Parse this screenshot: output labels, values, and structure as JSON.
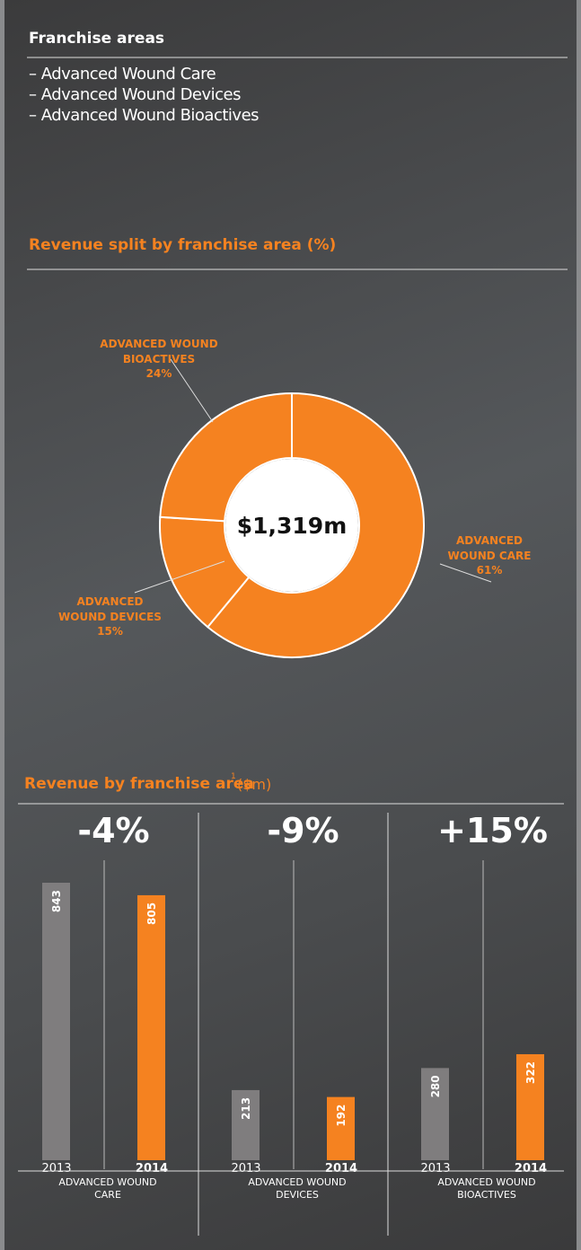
{
  "franchise": {
    "title": "Franchise areas",
    "items": [
      "– Advanced Wound Care",
      "– Advanced Wound Devices",
      "– Advanced Wound Bioactives"
    ]
  },
  "chart_data": [
    {
      "type": "pie",
      "title": "Revenue split by franchise area (%)",
      "center_label": "$1,319m",
      "categories": [
        "ADVANCED WOUND CARE",
        "ADVANCED WOUND DEVICES",
        "ADVANCED WOUND BIOACTIVES"
      ],
      "values": [
        61,
        15,
        24
      ],
      "value_labels": [
        "61%",
        "15%",
        "24%"
      ],
      "color": "#f58220"
    },
    {
      "type": "bar",
      "title": "Revenue by franchise area",
      "title_note": "1",
      "title_unit": "($m)",
      "categories": [
        "ADVANCED WOUND CARE",
        "ADVANCED WOUND DEVICES",
        "ADVANCED WOUND BIOACTIVES"
      ],
      "changes": [
        "-4%",
        "-9%",
        "+15%"
      ],
      "series": [
        {
          "name": "2013",
          "color": "#7f7d7e",
          "values": [
            843,
            213,
            280
          ]
        },
        {
          "name": "2014",
          "color": "#f58220",
          "values": [
            805,
            192,
            322
          ]
        }
      ]
    }
  ]
}
